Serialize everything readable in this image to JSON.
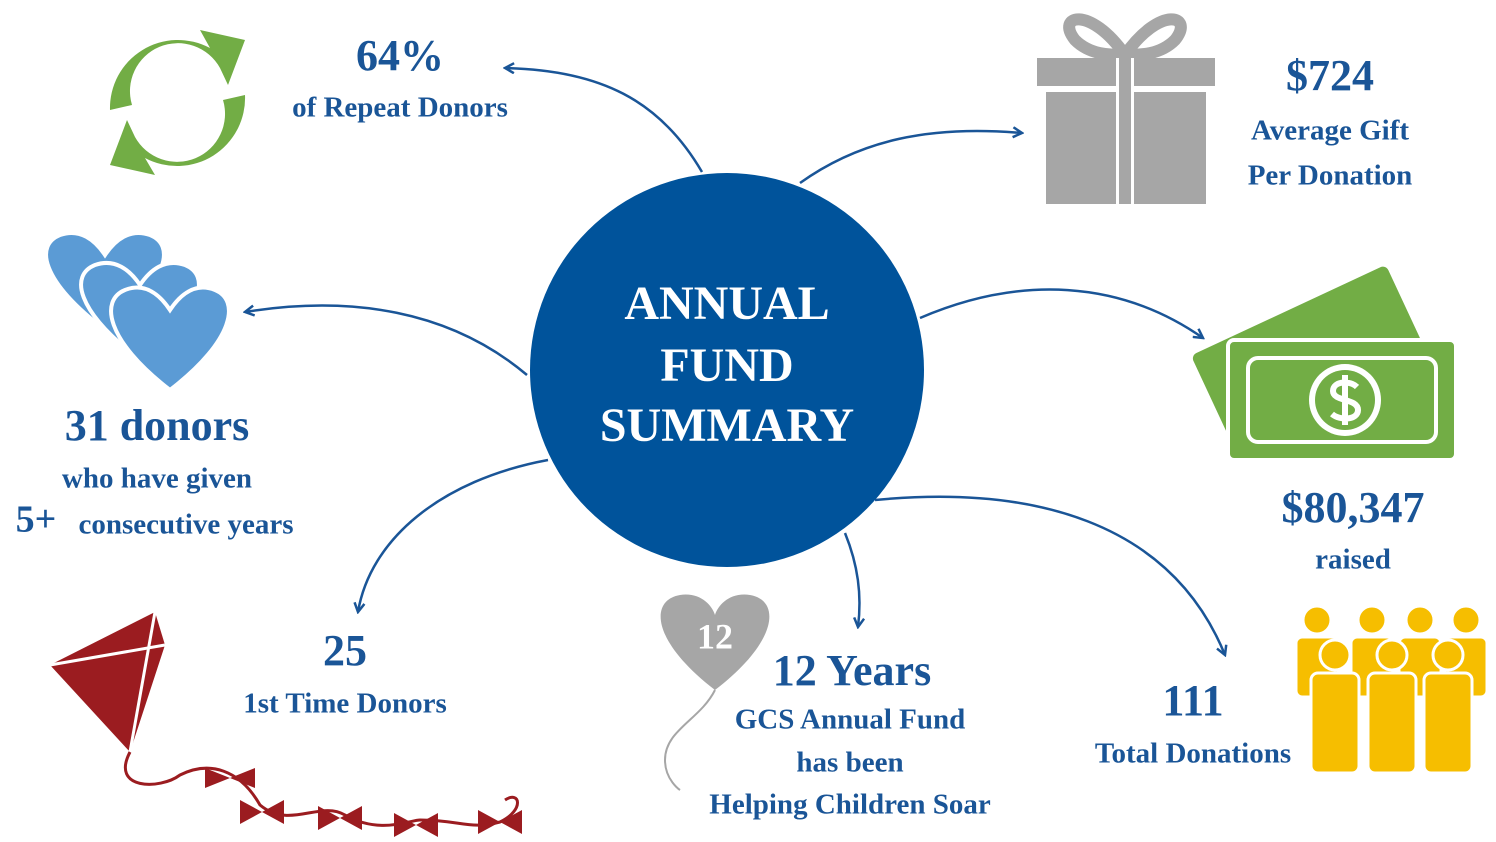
{
  "center": {
    "title_lines": [
      "ANNUAL",
      "FUND",
      "SUMMARY"
    ]
  },
  "stats": [
    {
      "value": "64%",
      "label_lines": [
        "of Repeat Donors"
      ]
    },
    {
      "value": "$724",
      "label_lines": [
        "Average Gift",
        "Per Donation"
      ]
    },
    {
      "value": "31 donors",
      "label_lines": [
        "who have given",
        "5+",
        "consecutive years"
      ]
    },
    {
      "value": "$80,347",
      "label_lines": [
        "raised"
      ]
    },
    {
      "value": "25",
      "label_lines": [
        "1st Time Donors"
      ]
    },
    {
      "value": "12 Years",
      "label_lines": [
        "GCS Annual Fund",
        "has been",
        "Helping Children Soar"
      ]
    },
    {
      "value": "111",
      "label_lines": [
        "Total Donations"
      ]
    }
  ],
  "balloon_label": "12"
}
